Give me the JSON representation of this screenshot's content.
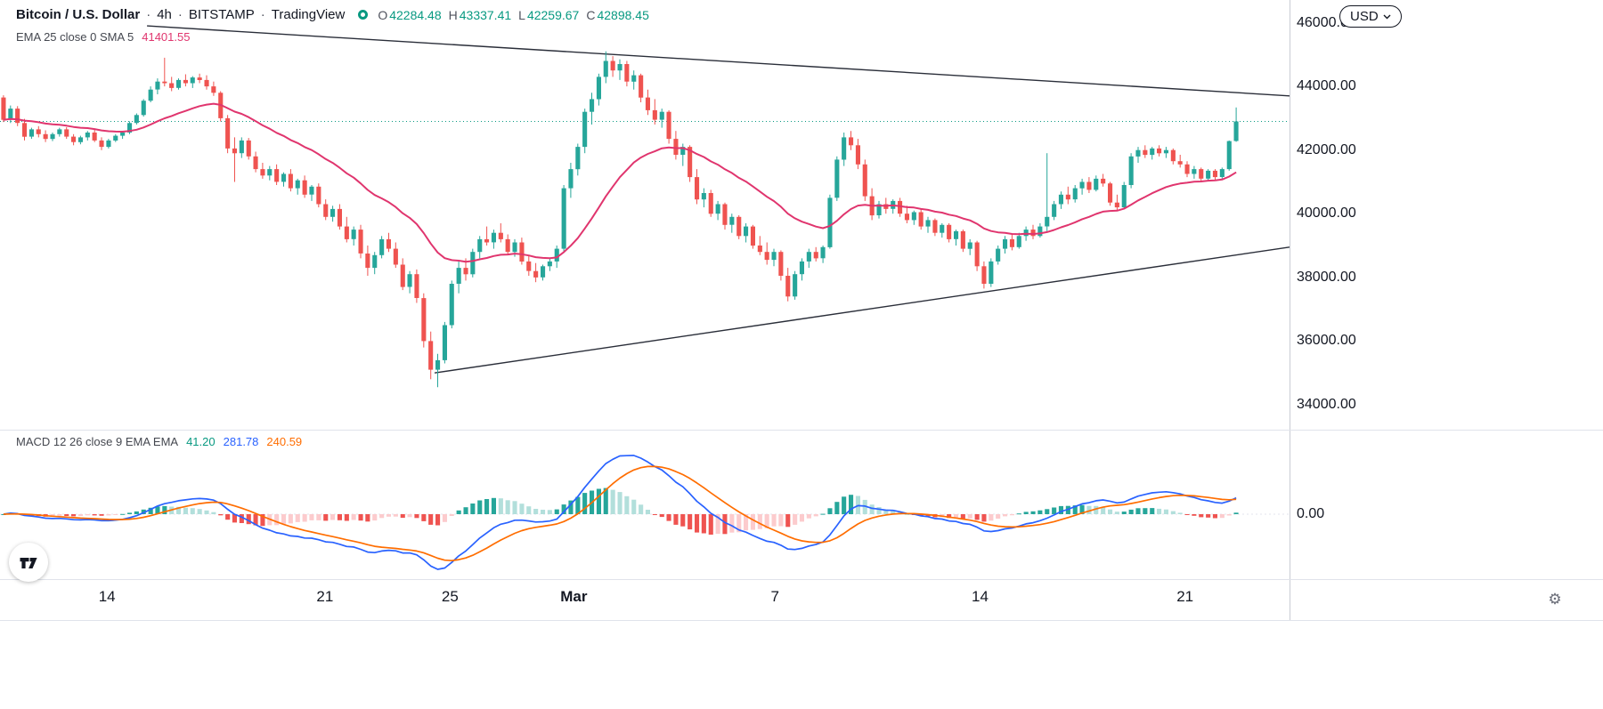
{
  "header": {
    "symbol": "Bitcoin / U.S. Dollar",
    "separator": "·",
    "interval": "4h",
    "exchange": "BITSTAMP",
    "platform": "TradingView",
    "ohlc": {
      "o_label": "O",
      "o_value": "42284.48",
      "h_label": "H",
      "h_value": "43337.41",
      "l_label": "L",
      "l_value": "42259.67",
      "c_label": "C",
      "c_value": "42898.45"
    },
    "ema_legend": {
      "label": "EMA 25 close 0 SMA 5",
      "value": "41401.55"
    }
  },
  "macd_legend": {
    "label": "MACD 12 26 close 9 EMA EMA",
    "hist_value": "41.20",
    "macd_value": "281.78",
    "signal_value": "240.59"
  },
  "controls": {
    "currency_button": "USD"
  },
  "chart_data": {
    "type": "candlestick",
    "title": "Bitcoin / U.S. Dollar 4h BITSTAMP",
    "y_axis": {
      "price_at_top": 46713,
      "price_at_bottom": 33217,
      "ticks": [
        {
          "price": 46000,
          "label": "46000.00"
        },
        {
          "price": 44000,
          "label": "44000.00"
        },
        {
          "price": 42000,
          "label": "42000.00"
        },
        {
          "price": 40000,
          "label": "40000.00"
        },
        {
          "price": 38000,
          "label": "38000.00"
        },
        {
          "price": 36000,
          "label": "36000.00"
        },
        {
          "price": 34000,
          "label": "34000.00"
        }
      ],
      "macd_zero_label": "0.00"
    },
    "x_axis": {
      "labels": [
        {
          "text": "14",
          "pos": 0.083,
          "bold": false
        },
        {
          "text": "21",
          "pos": 0.252,
          "bold": false
        },
        {
          "text": "25",
          "pos": 0.349,
          "bold": false
        },
        {
          "text": "Mar",
          "pos": 0.445,
          "bold": true
        },
        {
          "text": "7",
          "pos": 0.601,
          "bold": false
        },
        {
          "text": "14",
          "pos": 0.76,
          "bold": false
        },
        {
          "text": "21",
          "pos": 0.919,
          "bold": false
        }
      ]
    },
    "indicators": {
      "ema_length": 25,
      "macd": {
        "fast": 12,
        "slow": 26,
        "signal": 9
      }
    },
    "current_price": 42898.45,
    "trendlines": [
      {
        "x1": 0.114,
        "price1": 45900,
        "x2": 1.0,
        "price2": 43700
      },
      {
        "x1": 0.337,
        "price1": 35000,
        "x2": 1.0,
        "price2": 38950
      }
    ],
    "colors": {
      "up": "#26a69a",
      "down": "#ef5350",
      "ema": "#e0356e",
      "macd_line": "#2962ff",
      "signal_line": "#ff6d00",
      "hist_up": "#26a69a",
      "hist_up_weak": "#b2dfdb",
      "hist_down": "#ef5350",
      "hist_down_weak": "#fccbcd",
      "trendline": "#2a2e39",
      "price_line": "#089981"
    },
    "candles": [
      [
        43650,
        43720,
        42880,
        42950
      ],
      [
        42950,
        43400,
        42850,
        43300
      ],
      [
        43300,
        43380,
        42750,
        42850
      ],
      [
        42850,
        42980,
        42300,
        42420
      ],
      [
        42420,
        42700,
        42350,
        42650
      ],
      [
        42650,
        42750,
        42400,
        42500
      ],
      [
        42500,
        42620,
        42250,
        42350
      ],
      [
        42350,
        42550,
        42280,
        42500
      ],
      [
        42500,
        42700,
        42420,
        42650
      ],
      [
        42650,
        42720,
        42350,
        42420
      ],
      [
        42420,
        42500,
        42150,
        42250
      ],
      [
        42250,
        42450,
        42180,
        42400
      ],
      [
        42400,
        42600,
        42300,
        42550
      ],
      [
        42550,
        42650,
        42250,
        42300
      ],
      [
        42300,
        42400,
        42000,
        42100
      ],
      [
        42100,
        42350,
        42050,
        42300
      ],
      [
        42300,
        42500,
        42250,
        42450
      ],
      [
        42450,
        42600,
        42350,
        42550
      ],
      [
        42550,
        42900,
        42500,
        42850
      ],
      [
        42850,
        43150,
        42800,
        43100
      ],
      [
        43100,
        43600,
        43050,
        43550
      ],
      [
        43550,
        44000,
        43500,
        43900
      ],
      [
        43900,
        44250,
        43750,
        44150
      ],
      [
        44150,
        44900,
        44000,
        44100
      ],
      [
        44100,
        44300,
        43850,
        43950
      ],
      [
        43950,
        44250,
        43900,
        44200
      ],
      [
        44200,
        44380,
        44000,
        44100
      ],
      [
        44100,
        44320,
        43950,
        44280
      ],
      [
        44280,
        44400,
        44100,
        44200
      ],
      [
        44200,
        44350,
        43900,
        44000
      ],
      [
        44000,
        44150,
        43700,
        43800
      ],
      [
        43800,
        43850,
        42900,
        43000
      ],
      [
        43000,
        43100,
        41900,
        42050
      ],
      [
        42050,
        42400,
        41000,
        41900
      ],
      [
        41900,
        42400,
        41750,
        42300
      ],
      [
        42300,
        42380,
        41700,
        41800
      ],
      [
        41800,
        41950,
        41300,
        41400
      ],
      [
        41400,
        41600,
        41100,
        41200
      ],
      [
        41200,
        41500,
        41050,
        41400
      ],
      [
        41400,
        41550,
        40900,
        41000
      ],
      [
        41000,
        41300,
        40850,
        41250
      ],
      [
        41250,
        41400,
        40700,
        40800
      ],
      [
        40800,
        41100,
        40600,
        41050
      ],
      [
        41050,
        41200,
        40500,
        40600
      ],
      [
        40600,
        40900,
        40400,
        40850
      ],
      [
        40850,
        40950,
        40200,
        40300
      ],
      [
        40300,
        40450,
        39800,
        39900
      ],
      [
        39900,
        40250,
        39750,
        40150
      ],
      [
        40150,
        40300,
        39500,
        39600
      ],
      [
        39600,
        39900,
        39100,
        39200
      ],
      [
        39200,
        39600,
        39000,
        39500
      ],
      [
        39500,
        39650,
        38600,
        38750
      ],
      [
        38750,
        39000,
        38050,
        38300
      ],
      [
        38300,
        38800,
        38100,
        38700
      ],
      [
        38700,
        39300,
        38600,
        39200
      ],
      [
        39200,
        39400,
        38800,
        38900
      ],
      [
        38900,
        39100,
        38300,
        38400
      ],
      [
        38400,
        38600,
        37600,
        37700
      ],
      [
        37700,
        38200,
        37500,
        38100
      ],
      [
        38100,
        38250,
        37200,
        37350
      ],
      [
        37350,
        37500,
        35800,
        36000
      ],
      [
        36000,
        36300,
        34800,
        35100
      ],
      [
        35100,
        35600,
        34550,
        35400
      ],
      [
        35400,
        36600,
        35300,
        36500
      ],
      [
        36500,
        37900,
        36400,
        37800
      ],
      [
        37800,
        38500,
        37500,
        38300
      ],
      [
        38300,
        38600,
        37900,
        38100
      ],
      [
        38100,
        38900,
        38000,
        38800
      ],
      [
        38800,
        39300,
        38600,
        39200
      ],
      [
        39200,
        39600,
        39000,
        39100
      ],
      [
        39100,
        39500,
        38900,
        39400
      ],
      [
        39400,
        39700,
        39100,
        39200
      ],
      [
        39200,
        39350,
        38700,
        38800
      ],
      [
        38800,
        39200,
        38650,
        39100
      ],
      [
        39100,
        39250,
        38400,
        38500
      ],
      [
        38500,
        38700,
        38050,
        38200
      ],
      [
        38200,
        38450,
        37850,
        38000
      ],
      [
        38000,
        38400,
        37900,
        38350
      ],
      [
        38350,
        38600,
        38200,
        38500
      ],
      [
        38500,
        39000,
        38300,
        38900
      ],
      [
        38900,
        40900,
        38800,
        40800
      ],
      [
        40800,
        41600,
        40500,
        41400
      ],
      [
        41400,
        42200,
        41200,
        42100
      ],
      [
        42100,
        43300,
        41900,
        43200
      ],
      [
        43200,
        43800,
        42800,
        43600
      ],
      [
        43600,
        44400,
        43400,
        44300
      ],
      [
        44300,
        45100,
        44100,
        44800
      ],
      [
        44800,
        44950,
        44300,
        44500
      ],
      [
        44500,
        44850,
        44200,
        44700
      ],
      [
        44700,
        44800,
        44000,
        44150
      ],
      [
        44150,
        44500,
        43900,
        44350
      ],
      [
        44350,
        44400,
        43500,
        43650
      ],
      [
        43650,
        43900,
        43100,
        43250
      ],
      [
        43250,
        43600,
        42800,
        42950
      ],
      [
        42950,
        43300,
        42700,
        43200
      ],
      [
        43200,
        43250,
        42200,
        42350
      ],
      [
        42350,
        42600,
        41700,
        41850
      ],
      [
        41850,
        42200,
        41500,
        42100
      ],
      [
        42100,
        42150,
        41000,
        41150
      ],
      [
        41150,
        41400,
        40300,
        40450
      ],
      [
        40450,
        40800,
        40200,
        40650
      ],
      [
        40650,
        40750,
        39900,
        40000
      ],
      [
        40000,
        40400,
        39800,
        40300
      ],
      [
        40300,
        40350,
        39500,
        39650
      ],
      [
        39650,
        40000,
        39400,
        39900
      ],
      [
        39900,
        39950,
        39200,
        39300
      ],
      [
        39300,
        39700,
        39100,
        39600
      ],
      [
        39600,
        39650,
        38900,
        39000
      ],
      [
        39000,
        39300,
        38700,
        38800
      ],
      [
        38800,
        39100,
        38400,
        38550
      ],
      [
        38550,
        38900,
        38350,
        38800
      ],
      [
        38800,
        38850,
        37900,
        38050
      ],
      [
        38050,
        38300,
        37250,
        37400
      ],
      [
        37400,
        38200,
        37300,
        38100
      ],
      [
        38100,
        38600,
        37900,
        38500
      ],
      [
        38500,
        38900,
        38300,
        38800
      ],
      [
        38800,
        38950,
        38500,
        38600
      ],
      [
        38600,
        39000,
        38450,
        38950
      ],
      [
        38950,
        40600,
        38900,
        40500
      ],
      [
        40500,
        41800,
        40400,
        41700
      ],
      [
        41700,
        42550,
        41500,
        42400
      ],
      [
        42400,
        42600,
        42000,
        42150
      ],
      [
        42150,
        42350,
        41400,
        41550
      ],
      [
        41550,
        41700,
        40400,
        40550
      ],
      [
        40550,
        40800,
        39800,
        39950
      ],
      [
        39950,
        40400,
        39850,
        40300
      ],
      [
        40300,
        40500,
        40000,
        40150
      ],
      [
        40150,
        40450,
        40000,
        40400
      ],
      [
        40400,
        40500,
        39900,
        40000
      ],
      [
        40000,
        40250,
        39700,
        39800
      ],
      [
        39800,
        40100,
        39650,
        40050
      ],
      [
        40050,
        40150,
        39500,
        39600
      ],
      [
        39600,
        39900,
        39400,
        39800
      ],
      [
        39800,
        39850,
        39300,
        39400
      ],
      [
        39400,
        39700,
        39250,
        39650
      ],
      [
        39650,
        39700,
        39100,
        39200
      ],
      [
        39200,
        39500,
        39000,
        39450
      ],
      [
        39450,
        39500,
        38800,
        38900
      ],
      [
        38900,
        39200,
        38700,
        39100
      ],
      [
        39100,
        39150,
        38200,
        38350
      ],
      [
        38350,
        38500,
        37650,
        37800
      ],
      [
        37800,
        38600,
        37700,
        38500
      ],
      [
        38500,
        39000,
        38400,
        38900
      ],
      [
        38900,
        39300,
        38750,
        39200
      ],
      [
        39200,
        39350,
        38850,
        38950
      ],
      [
        38950,
        39400,
        38900,
        39300
      ],
      [
        39300,
        39600,
        39150,
        39500
      ],
      [
        39500,
        39650,
        39200,
        39300
      ],
      [
        39300,
        39700,
        39250,
        39600
      ],
      [
        39600,
        41900,
        39450,
        39900
      ],
      [
        39900,
        40400,
        39800,
        40300
      ],
      [
        40300,
        40700,
        40150,
        40600
      ],
      [
        40600,
        40850,
        40300,
        40450
      ],
      [
        40450,
        40900,
        40350,
        40800
      ],
      [
        40800,
        41100,
        40600,
        41000
      ],
      [
        41000,
        41150,
        40650,
        40750
      ],
      [
        40750,
        41200,
        40700,
        41100
      ],
      [
        41100,
        41250,
        40850,
        40950
      ],
      [
        40950,
        41000,
        40250,
        40350
      ],
      [
        40350,
        40600,
        40100,
        40200
      ],
      [
        40200,
        41000,
        40150,
        40900
      ],
      [
        40900,
        41900,
        40800,
        41800
      ],
      [
        41800,
        42100,
        41600,
        42000
      ],
      [
        42000,
        42150,
        41750,
        41850
      ],
      [
        41850,
        42100,
        41700,
        42050
      ],
      [
        42050,
        42150,
        41800,
        41900
      ],
      [
        41900,
        42100,
        41750,
        42000
      ],
      [
        42000,
        42050,
        41550,
        41650
      ],
      [
        41650,
        41850,
        41450,
        41550
      ],
      [
        41550,
        41650,
        41150,
        41250
      ],
      [
        41250,
        41500,
        41100,
        41400
      ],
      [
        41400,
        41450,
        41000,
        41100
      ],
      [
        41100,
        41400,
        41050,
        41350
      ],
      [
        41350,
        41400,
        41050,
        41150
      ],
      [
        41150,
        41450,
        41100,
        41400
      ],
      [
        41400,
        42300,
        41350,
        42280
      ],
      [
        42284,
        43337,
        42260,
        42898
      ]
    ]
  }
}
